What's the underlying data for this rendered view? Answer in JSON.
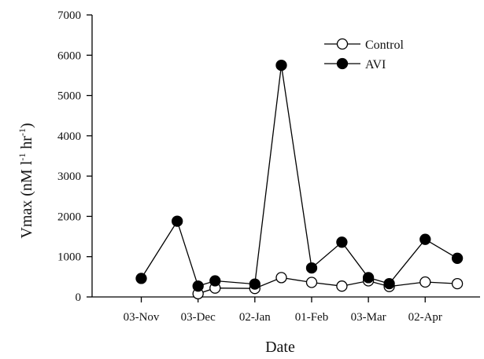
{
  "chart_data": {
    "type": "line",
    "xlabel": "Date",
    "ylabel": "Vmax (nM l",
    "ylabel_sup1": "-1",
    "ylabel_mid": " hr",
    "ylabel_sup2": "-1",
    "ylabel_end": ")",
    "ylim": [
      0,
      7000
    ],
    "yticks": [
      0,
      1000,
      2000,
      3000,
      4000,
      5000,
      6000,
      7000
    ],
    "xlim": [
      "2000-10-08",
      "2001-05-01"
    ],
    "xticks": [
      "2000-11-03",
      "2000-12-03",
      "2001-01-02",
      "2001-02-01",
      "2001-03-03",
      "2001-04-02"
    ],
    "xtick_labels": [
      "03-Nov",
      "03-Dec",
      "02-Jan",
      "01-Feb",
      "03-Mar",
      "02-Apr"
    ],
    "grid": false,
    "legend_position": "top-right",
    "series": [
      {
        "name": "Control",
        "marker": "open-circle",
        "color": "#000000",
        "points": [
          {
            "x": "2000-12-03",
            "y": 80
          },
          {
            "x": "2000-12-12",
            "y": 220
          },
          {
            "x": "2001-01-02",
            "y": 210
          },
          {
            "x": "2001-01-16",
            "y": 480
          },
          {
            "x": "2001-02-01",
            "y": 360
          },
          {
            "x": "2001-02-17",
            "y": 270
          },
          {
            "x": "2001-03-03",
            "y": 400
          },
          {
            "x": "2001-03-14",
            "y": 260
          },
          {
            "x": "2001-04-02",
            "y": 370
          },
          {
            "x": "2001-04-19",
            "y": 330
          }
        ]
      },
      {
        "name": "AVI",
        "marker": "filled-circle",
        "color": "#000000",
        "points": [
          {
            "x": "2000-11-03",
            "y": 460
          },
          {
            "x": "2000-11-22",
            "y": 1880
          },
          {
            "x": "2000-12-03",
            "y": 270
          },
          {
            "x": "2000-12-12",
            "y": 400
          },
          {
            "x": "2001-01-02",
            "y": 320
          },
          {
            "x": "2001-01-16",
            "y": 5750
          },
          {
            "x": "2001-02-01",
            "y": 720
          },
          {
            "x": "2001-02-17",
            "y": 1360
          },
          {
            "x": "2001-03-03",
            "y": 480
          },
          {
            "x": "2001-03-14",
            "y": 330
          },
          {
            "x": "2001-04-02",
            "y": 1430
          },
          {
            "x": "2001-04-19",
            "y": 960
          }
        ]
      }
    ]
  }
}
